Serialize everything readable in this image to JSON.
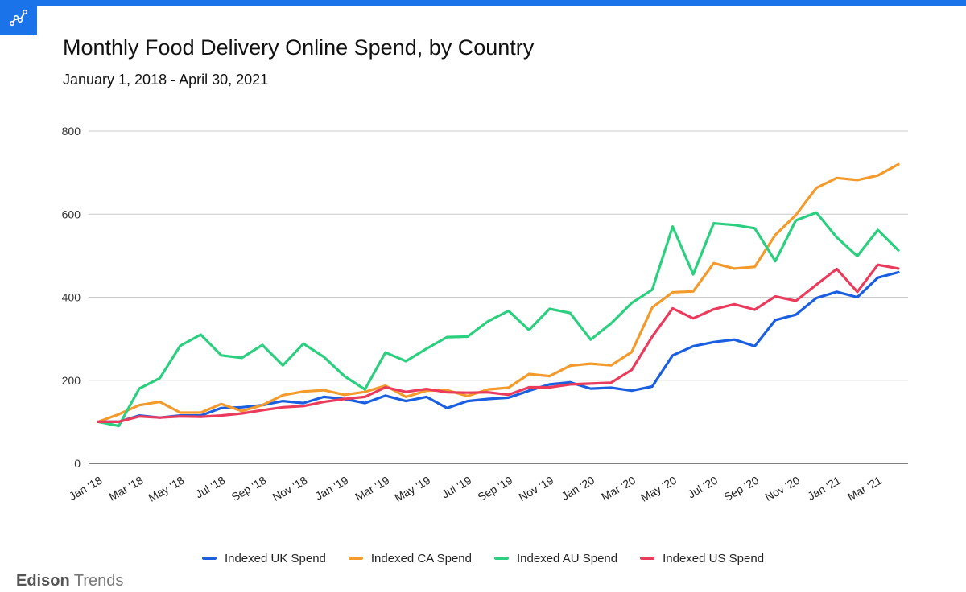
{
  "header": {
    "title": "Monthly Food Delivery Online Spend, by Country",
    "subtitle": "January 1, 2018 - April 30, 2021"
  },
  "brand": {
    "name_bold": "Edison",
    "name_light": "Trends",
    "logo_icon": "line-chart-icon"
  },
  "colors": {
    "accent": "#1a73e8",
    "uk": "#1a5fe0",
    "ca": "#f39a2b",
    "au": "#2ad07f",
    "us": "#ea3b5c",
    "grid": "#cccccc"
  },
  "chart_data": {
    "type": "line",
    "title": "Monthly Food Delivery Online Spend, by Country",
    "subtitle": "January 1, 2018 - April 30, 2021",
    "ylim": [
      0,
      800
    ],
    "y_ticks": [
      0,
      200,
      400,
      600,
      800
    ],
    "grid": true,
    "legend_position": "bottom",
    "x": [
      "Jan '18",
      "Feb '18",
      "Mar '18",
      "Apr '18",
      "May '18",
      "Jun '18",
      "Jul '18",
      "Aug '18",
      "Sep '18",
      "Oct '18",
      "Nov '18",
      "Dec '18",
      "Jan '19",
      "Feb '19",
      "Mar '19",
      "Apr '19",
      "May '19",
      "Jun '19",
      "Jul '19",
      "Aug '19",
      "Sep '19",
      "Oct '19",
      "Nov '19",
      "Dec '19",
      "Jan '20",
      "Feb '20",
      "Mar '20",
      "Apr '20",
      "May '20",
      "Jun '20",
      "Jul '20",
      "Aug '20",
      "Sep '20",
      "Oct '20",
      "Nov '20",
      "Dec '20",
      "Jan '21",
      "Feb '21",
      "Mar '21",
      "Apr '21"
    ],
    "x_tick_labels": [
      "Jan '18",
      "Mar '18",
      "May '18",
      "Jul '18",
      "Sep '18",
      "Nov '18",
      "Jan '19",
      "Mar '19",
      "May '19",
      "Jul '19",
      "Sep '19",
      "Nov '19",
      "Jan '20",
      "Mar '20",
      "May '20",
      "Jul '20",
      "Sep '20",
      "Nov '20",
      "Jan '21",
      "Mar '21"
    ],
    "series": [
      {
        "name": "Indexed UK Spend",
        "color": "#1a5fe0",
        "values": [
          100,
          100,
          115,
          110,
          115,
          115,
          133,
          135,
          140,
          150,
          145,
          160,
          155,
          145,
          163,
          150,
          160,
          133,
          150,
          155,
          158,
          175,
          190,
          195,
          180,
          182,
          175,
          185,
          260,
          282,
          292,
          298,
          282,
          345,
          358,
          398,
          413,
          400,
          447,
          460
        ]
      },
      {
        "name": "Indexed CA Spend",
        "color": "#f39a2b",
        "values": [
          100,
          118,
          140,
          148,
          122,
          122,
          143,
          126,
          140,
          164,
          173,
          176,
          165,
          172,
          187,
          160,
          175,
          176,
          162,
          178,
          182,
          215,
          210,
          235,
          240,
          236,
          268,
          375,
          412,
          414,
          482,
          469,
          473,
          550,
          598,
          663,
          687,
          682,
          693,
          720
        ]
      },
      {
        "name": "Indexed AU Spend",
        "color": "#2ad07f",
        "values": [
          100,
          90,
          180,
          205,
          283,
          310,
          260,
          254,
          285,
          236,
          288,
          256,
          210,
          178,
          267,
          246,
          276,
          304,
          305,
          342,
          367,
          321,
          372,
          362,
          298,
          337,
          386,
          418,
          570,
          455,
          578,
          574,
          566,
          487,
          585,
          604,
          544,
          499,
          562,
          513
        ]
      },
      {
        "name": "Indexed US Spend",
        "color": "#ea3b5c",
        "values": [
          100,
          100,
          113,
          110,
          113,
          112,
          115,
          120,
          128,
          135,
          138,
          148,
          155,
          160,
          183,
          172,
          179,
          171,
          170,
          171,
          165,
          183,
          183,
          190,
          192,
          194,
          225,
          305,
          373,
          349,
          371,
          383,
          370,
          402,
          391,
          430,
          468,
          413,
          478,
          469
        ]
      }
    ]
  }
}
